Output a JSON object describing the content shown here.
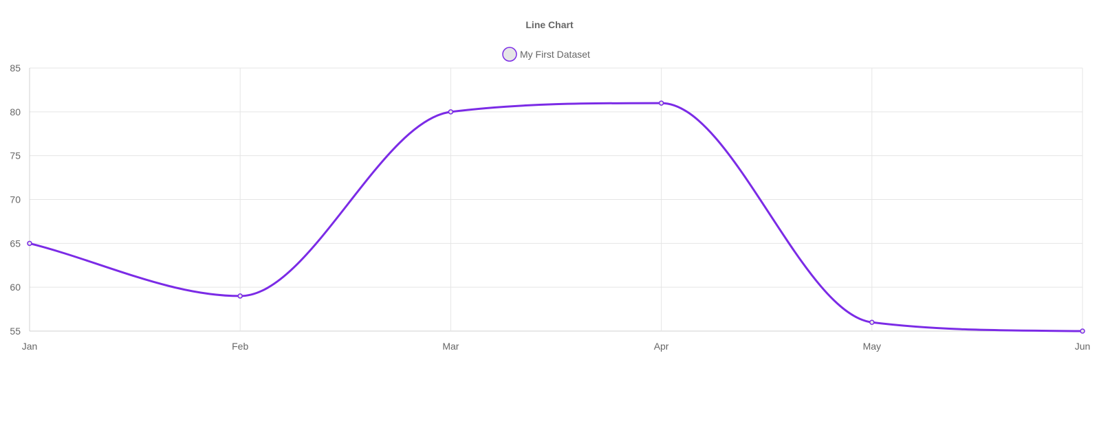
{
  "chart_data": {
    "type": "line",
    "title": "Line Chart",
    "categories": [
      "Jan",
      "Feb",
      "Mar",
      "Apr",
      "May",
      "Jun"
    ],
    "series": [
      {
        "name": "My First Dataset",
        "values": [
          65,
          59,
          80,
          81,
          56,
          55
        ],
        "color": "#7b2be6",
        "fill": "#e6e6e6"
      }
    ],
    "ylim": [
      55,
      85
    ],
    "yticks": [
      55,
      60,
      65,
      70,
      75,
      80,
      85
    ],
    "xlabel": "",
    "ylabel": "",
    "grid": true,
    "legend": "top-center",
    "curve": "smooth"
  }
}
